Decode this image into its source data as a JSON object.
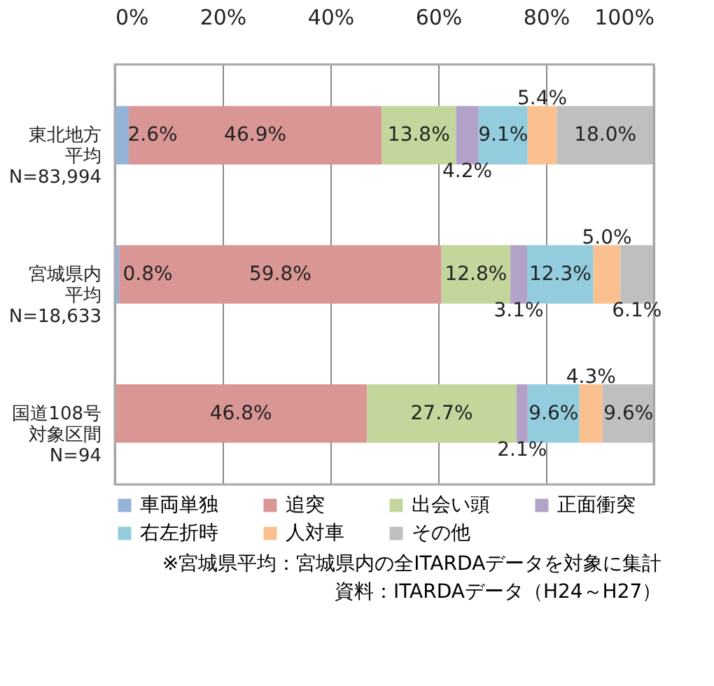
{
  "chart_data": {
    "type": "bar",
    "orientation": "horizontal",
    "stacked": true,
    "categories": [
      "東北地方平均\nN=83,994",
      "宮城県内平均\nN=18,633",
      "国道108号対象区間\nN=94"
    ],
    "series": [
      {
        "name": "車両単独",
        "color": "#95b3d7",
        "values": [
          2.6,
          0.8,
          null
        ],
        "value_labels": [
          "2.6%",
          "0.8%",
          null
        ]
      },
      {
        "name": "追突",
        "color": "#d99694",
        "values": [
          46.9,
          59.8,
          46.8
        ],
        "value_labels": [
          "46.9%",
          "59.8%",
          "46.8%"
        ]
      },
      {
        "name": "出会い頭",
        "color": "#c3d69b",
        "values": [
          13.8,
          12.8,
          27.7
        ],
        "value_labels": [
          "13.8%",
          "12.8%",
          "27.7%"
        ]
      },
      {
        "name": "正面衝突",
        "color": "#b3a2c7",
        "values": [
          4.2,
          3.1,
          2.1
        ],
        "value_labels": [
          "4.2%",
          "3.1%",
          "2.1%"
        ]
      },
      {
        "name": "右左折時",
        "color": "#93cddd",
        "values": [
          9.1,
          12.3,
          9.6
        ],
        "value_labels": [
          "9.1%",
          "12.3%",
          "9.6%"
        ]
      },
      {
        "name": "人対車",
        "color": "#fac090",
        "values": [
          5.4,
          5.0,
          4.3
        ],
        "value_labels": [
          "5.4%",
          "5.0%",
          "4.3%"
        ]
      },
      {
        "name": "その他",
        "color": "#bfbfbf",
        "values": [
          18.0,
          6.1,
          9.6
        ],
        "value_labels": [
          "18.0%",
          "6.1%",
          "9.6%"
        ]
      }
    ],
    "xlim": [
      0,
      100
    ],
    "xticks": [
      {
        "value": 0,
        "label": "0%"
      },
      {
        "value": 20,
        "label": "20%"
      },
      {
        "value": 40,
        "label": "40%"
      },
      {
        "value": 60,
        "label": "60%"
      },
      {
        "value": 80,
        "label": "80%"
      },
      {
        "value": 100,
        "label": "100%"
      }
    ],
    "grid": "x",
    "legend": "bottom",
    "annotations": [
      "※宮城県平均：宮城県内の全ITARDAデータを対象に集計",
      "資料：ITARDAデータ（H24～H27）"
    ]
  }
}
